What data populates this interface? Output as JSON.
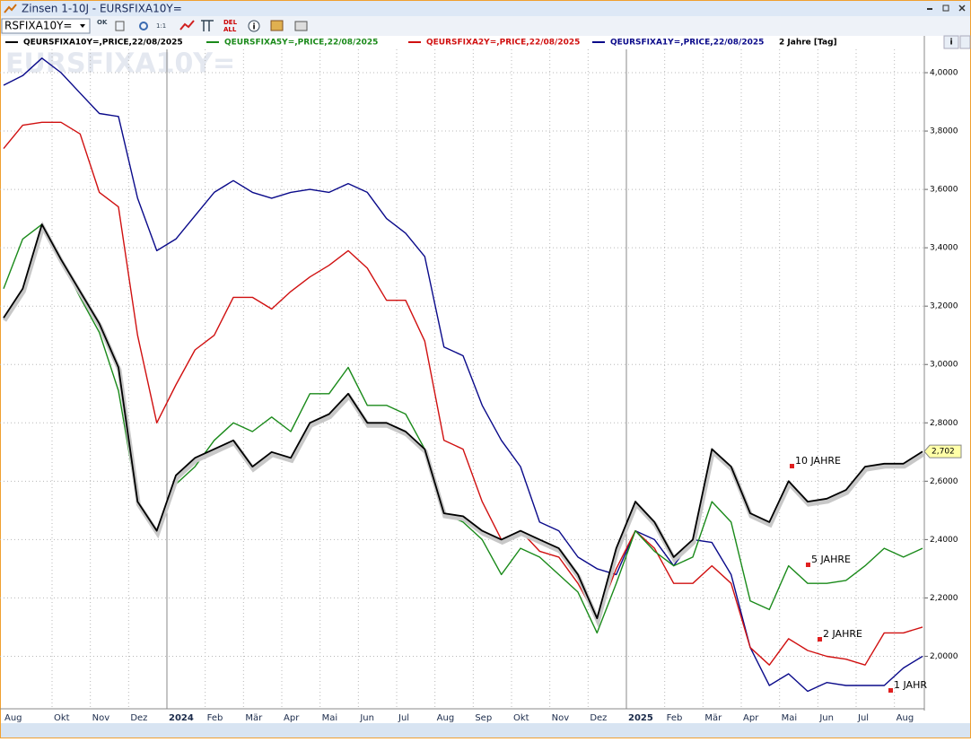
{
  "ui": {
    "window_title": "Zinsen 1-10J - EURSFIXA10Y=",
    "symbol_box": "RSFIXA10Y=",
    "btn_ok": "OK",
    "btn_ratio": "1:1",
    "btn_del": "DEL",
    "btn_all": "ALL",
    "btn_info": "i",
    "side_info": "i"
  },
  "chart_data": {
    "type": "line",
    "watermark": "EURSFIXA10Y=",
    "period": "2 Jahre [Tag]",
    "categories": [
      "Aug",
      null,
      null,
      "Okt",
      null,
      "Nov",
      null,
      "Dez",
      null,
      "2024",
      null,
      "Feb",
      null,
      "Mär",
      null,
      "Apr",
      null,
      "Mai",
      null,
      "Jun",
      null,
      "Jul",
      null,
      "Aug",
      null,
      "Sep",
      null,
      "Okt",
      null,
      "Nov",
      null,
      "Dez",
      null,
      "2025",
      null,
      "Feb",
      null,
      "Mär",
      null,
      "Apr",
      null,
      "Mai",
      null,
      "Jun",
      null,
      "Jul",
      null,
      "Aug",
      null
    ],
    "series": [
      {
        "name": "QEURSFIXA10Y=,PRICE,22/08/2025",
        "color": "#000000",
        "values": [
          3.16,
          3.26,
          3.48,
          3.36,
          3.25,
          3.14,
          2.99,
          2.53,
          2.43,
          2.62,
          2.68,
          2.71,
          2.74,
          2.65,
          2.7,
          2.68,
          2.8,
          2.83,
          2.9,
          2.8,
          2.8,
          2.77,
          2.71,
          2.49,
          2.48,
          2.43,
          2.4,
          2.43,
          2.4,
          2.37,
          2.28,
          2.13,
          2.37,
          2.53,
          2.46,
          2.34,
          2.4,
          2.71,
          2.65,
          2.49,
          2.46,
          2.6,
          2.53,
          2.54,
          2.57,
          2.65,
          2.66,
          2.66,
          2.702
        ],
        "value_labels": [
          null,
          null,
          null,
          null,
          null,
          null,
          null,
          null,
          null,
          null,
          null,
          null,
          null,
          null,
          null,
          null,
          null,
          null,
          null,
          null,
          null,
          null,
          null,
          null,
          null,
          null,
          null,
          null,
          null,
          null,
          null,
          null,
          null,
          null,
          null,
          null,
          null,
          null,
          null,
          null,
          null,
          null,
          null,
          null,
          null,
          null,
          null,
          null,
          "2,702"
        ]
      },
      {
        "name": "QEURSFIXA5Y=,PRICE,22/08/2025",
        "color": "#1a8a1a",
        "values": [
          3.26,
          3.43,
          3.48,
          3.36,
          3.23,
          3.11,
          2.91,
          2.53,
          2.42,
          2.59,
          2.65,
          2.74,
          2.8,
          2.77,
          2.82,
          2.77,
          2.9,
          2.9,
          2.99,
          2.86,
          2.86,
          2.83,
          2.71,
          2.49,
          2.46,
          2.4,
          2.28,
          2.37,
          2.34,
          2.28,
          2.22,
          2.08,
          2.25,
          2.43,
          2.36,
          2.31,
          2.34,
          2.53,
          2.46,
          2.19,
          2.16,
          2.31,
          2.25,
          2.25,
          2.26,
          2.31,
          2.37,
          2.34,
          2.37
        ]
      },
      {
        "name": "QEURSFIXA2Y=,PRICE,22/08/2025",
        "color": "#d01010",
        "values": [
          3.74,
          3.82,
          3.83,
          3.83,
          3.79,
          3.59,
          3.54,
          3.1,
          2.8,
          2.93,
          3.05,
          3.1,
          3.23,
          3.23,
          3.19,
          3.25,
          3.3,
          3.34,
          3.39,
          3.33,
          3.22,
          3.22,
          3.08,
          2.74,
          2.71,
          2.53,
          2.4,
          2.43,
          2.36,
          2.34,
          2.25,
          2.13,
          2.3,
          2.43,
          2.37,
          2.25,
          2.25,
          2.31,
          2.25,
          2.03,
          1.97,
          2.06,
          2.02,
          2.0,
          1.99,
          1.97,
          2.08,
          2.08,
          2.1
        ]
      },
      {
        "name": "QEURSFIXA1Y=,PRICE,22/08/2025",
        "color": "#0a0a8a",
        "values": [
          3.957,
          3.99,
          4.05,
          4.0,
          3.93,
          3.86,
          3.85,
          3.57,
          3.39,
          3.43,
          3.51,
          3.59,
          3.63,
          3.59,
          3.57,
          3.59,
          3.6,
          3.59,
          3.62,
          3.59,
          3.5,
          3.45,
          3.37,
          3.06,
          3.03,
          2.86,
          2.74,
          2.65,
          2.46,
          2.43,
          2.34,
          2.3,
          2.28,
          2.43,
          2.4,
          2.31,
          2.4,
          2.39,
          2.28,
          2.03,
          1.9,
          1.94,
          1.88,
          1.91,
          1.9,
          1.9,
          1.9,
          1.96,
          2.0
        ]
      }
    ],
    "annotations": [
      {
        "text": "10 JAHRE"
      },
      {
        "text": "5 JAHRE"
      },
      {
        "text": "2 JAHRE"
      },
      {
        "text": "1 JAHR"
      }
    ],
    "ylim": [
      1.82,
      4.08
    ],
    "yticks": [
      {
        "value": 2,
        "label": "2,0000"
      },
      {
        "value": 2.2,
        "label": "2,2000"
      },
      {
        "value": 2.4,
        "label": "2,4000"
      },
      {
        "value": 2.6,
        "label": "2,6000"
      },
      {
        "value": 2.8,
        "label": "2,8000"
      },
      {
        "value": 3,
        "label": "3,0000"
      },
      {
        "value": 3.2,
        "label": "3,2000"
      },
      {
        "value": 3.4,
        "label": "3,4000"
      },
      {
        "value": 3.6,
        "label": "3,6000"
      },
      {
        "value": 3.8,
        "label": "3,8000"
      },
      {
        "value": 4,
        "label": "4,0000"
      }
    ],
    "grid": true
  }
}
